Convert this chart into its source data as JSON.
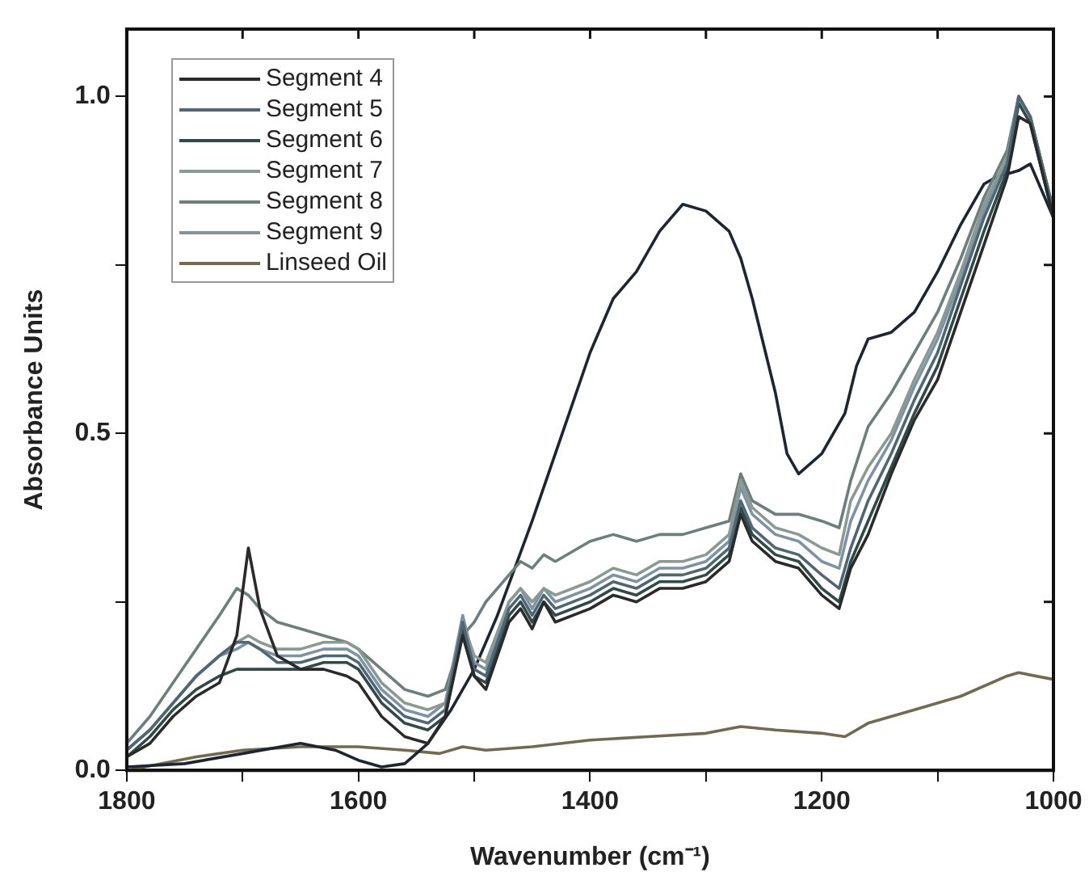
{
  "chart_data": {
    "type": "line",
    "xlabel": "Wavenumber (cm⁻¹)",
    "ylabel": "Absorbance Units",
    "xlim": [
      1800,
      1000
    ],
    "xticks": [
      1800,
      {
        "value": 1700,
        "label": null
      },
      1600,
      {
        "value": 1500,
        "label": null
      },
      1400,
      {
        "value": 1300,
        "label": null
      },
      1200,
      {
        "value": 1100,
        "label": null
      },
      1000
    ],
    "ylim": [
      0,
      1.1
    ],
    "yticks": [
      {
        "value": 0,
        "label": "0.0"
      },
      {
        "value": 0.25,
        "label": null
      },
      {
        "value": 0.5,
        "label": "0.5"
      },
      {
        "value": 0.75,
        "label": null
      },
      {
        "value": 1,
        "label": "1.0"
      }
    ],
    "grid": false,
    "legend": "top left",
    "marker": "none",
    "line_style": "solid",
    "x": [
      1800,
      1780,
      1760,
      1740,
      1720,
      1705,
      1695,
      1685,
      1670,
      1650,
      1630,
      1610,
      1600,
      1580,
      1560,
      1540,
      1525,
      1510,
      1500,
      1490,
      1470,
      1460,
      1450,
      1440,
      1430,
      1400,
      1380,
      1360,
      1340,
      1320,
      1300,
      1280,
      1270,
      1260,
      1240,
      1220,
      1200,
      1185,
      1175,
      1160,
      1140,
      1120,
      1100,
      1080,
      1060,
      1040,
      1030,
      1020,
      1000
    ],
    "series": [
      {
        "name": "Segment 4",
        "color": "#2a2a2a",
        "values": [
          0.02,
          0.04,
          0.08,
          0.11,
          0.13,
          0.2,
          0.33,
          0.24,
          0.17,
          0.15,
          0.15,
          0.14,
          0.13,
          0.08,
          0.05,
          0.04,
          0.08,
          0.2,
          0.14,
          0.12,
          0.22,
          0.24,
          0.21,
          0.25,
          0.22,
          0.24,
          0.26,
          0.25,
          0.27,
          0.27,
          0.28,
          0.31,
          0.38,
          0.34,
          0.31,
          0.3,
          0.26,
          0.24,
          0.3,
          0.35,
          0.44,
          0.52,
          0.58,
          0.68,
          0.78,
          0.88,
          0.97,
          0.96,
          0.82
        ]
      },
      {
        "name": "Segment 5",
        "color": "#4f6675",
        "values": [
          0.03,
          0.06,
          0.1,
          0.14,
          0.17,
          0.19,
          0.19,
          0.18,
          0.16,
          0.16,
          0.17,
          0.17,
          0.16,
          0.11,
          0.08,
          0.07,
          0.09,
          0.22,
          0.15,
          0.14,
          0.24,
          0.26,
          0.23,
          0.26,
          0.24,
          0.26,
          0.28,
          0.27,
          0.29,
          0.29,
          0.3,
          0.33,
          0.4,
          0.36,
          0.33,
          0.32,
          0.29,
          0.27,
          0.33,
          0.4,
          0.47,
          0.55,
          0.62,
          0.72,
          0.82,
          0.9,
          1.0,
          0.97,
          0.83
        ]
      },
      {
        "name": "Segment 6",
        "color": "#2f4a48",
        "values": [
          0.02,
          0.05,
          0.09,
          0.12,
          0.14,
          0.15,
          0.15,
          0.15,
          0.15,
          0.15,
          0.16,
          0.16,
          0.15,
          0.1,
          0.07,
          0.06,
          0.08,
          0.21,
          0.14,
          0.13,
          0.23,
          0.25,
          0.22,
          0.25,
          0.23,
          0.25,
          0.27,
          0.26,
          0.28,
          0.28,
          0.29,
          0.32,
          0.39,
          0.35,
          0.32,
          0.31,
          0.27,
          0.25,
          0.31,
          0.37,
          0.45,
          0.53,
          0.6,
          0.7,
          0.8,
          0.89,
          0.99,
          0.96,
          0.82
        ]
      },
      {
        "name": "Segment 7",
        "color": "#8a9a92",
        "values": [
          0.03,
          0.06,
          0.1,
          0.14,
          0.17,
          0.19,
          0.2,
          0.19,
          0.18,
          0.18,
          0.19,
          0.19,
          0.18,
          0.13,
          0.1,
          0.09,
          0.1,
          0.22,
          0.17,
          0.16,
          0.25,
          0.27,
          0.25,
          0.27,
          0.26,
          0.28,
          0.3,
          0.29,
          0.31,
          0.31,
          0.32,
          0.35,
          0.43,
          0.39,
          0.36,
          0.35,
          0.33,
          0.32,
          0.4,
          0.45,
          0.5,
          0.58,
          0.65,
          0.74,
          0.84,
          0.91,
          1.0,
          0.97,
          0.83
        ]
      },
      {
        "name": "Segment 8",
        "color": "#6d7f7c",
        "values": [
          0.04,
          0.08,
          0.13,
          0.18,
          0.23,
          0.27,
          0.26,
          0.24,
          0.22,
          0.21,
          0.2,
          0.19,
          0.18,
          0.15,
          0.12,
          0.11,
          0.12,
          0.2,
          0.22,
          0.25,
          0.29,
          0.31,
          0.3,
          0.32,
          0.31,
          0.34,
          0.35,
          0.34,
          0.35,
          0.35,
          0.36,
          0.37,
          0.44,
          0.4,
          0.38,
          0.38,
          0.37,
          0.36,
          0.43,
          0.51,
          0.56,
          0.62,
          0.68,
          0.76,
          0.85,
          0.92,
          1.0,
          0.97,
          0.83
        ]
      },
      {
        "name": "Segment 9",
        "color": "#7d93a5",
        "values": [
          0.03,
          0.06,
          0.1,
          0.14,
          0.17,
          0.18,
          0.19,
          0.18,
          0.17,
          0.17,
          0.18,
          0.18,
          0.17,
          0.12,
          0.09,
          0.08,
          0.1,
          0.23,
          0.16,
          0.15,
          0.25,
          0.27,
          0.24,
          0.27,
          0.25,
          0.27,
          0.29,
          0.28,
          0.3,
          0.3,
          0.31,
          0.34,
          0.42,
          0.38,
          0.35,
          0.34,
          0.31,
          0.3,
          0.37,
          0.43,
          0.49,
          0.57,
          0.64,
          0.73,
          0.83,
          0.91,
          1.0,
          0.97,
          0.83
        ]
      },
      {
        "color": "#1c2530",
        "x": [
          1800,
          1750,
          1700,
          1650,
          1620,
          1600,
          1580,
          1560,
          1540,
          1520,
          1500,
          1480,
          1450,
          1420,
          1400,
          1380,
          1360,
          1340,
          1320,
          1300,
          1280,
          1270,
          1260,
          1240,
          1230,
          1220,
          1200,
          1180,
          1170,
          1160,
          1140,
          1120,
          1100,
          1080,
          1060,
          1050,
          1030,
          1020,
          1000
        ],
        "values": [
          0.005,
          0.01,
          0.025,
          0.04,
          0.03,
          0.015,
          0.005,
          0.01,
          0.04,
          0.09,
          0.15,
          0.23,
          0.37,
          0.52,
          0.62,
          0.7,
          0.74,
          0.8,
          0.84,
          0.83,
          0.8,
          0.76,
          0.7,
          0.56,
          0.47,
          0.44,
          0.47,
          0.53,
          0.6,
          0.64,
          0.65,
          0.68,
          0.74,
          0.81,
          0.87,
          0.88,
          0.89,
          0.9,
          0.82
        ]
      },
      {
        "name": "Linseed Oil",
        "color": "#6f6a50",
        "x": [
          1800,
          1740,
          1700,
          1650,
          1600,
          1560,
          1530,
          1510,
          1490,
          1450,
          1400,
          1350,
          1300,
          1270,
          1240,
          1200,
          1180,
          1160,
          1120,
          1080,
          1040,
          1030,
          1000
        ],
        "values": [
          0.0,
          0.02,
          0.03,
          0.035,
          0.035,
          0.03,
          0.025,
          0.035,
          0.03,
          0.035,
          0.045,
          0.05,
          0.055,
          0.065,
          0.06,
          0.055,
          0.05,
          0.07,
          0.09,
          0.11,
          0.14,
          0.145,
          0.135
        ]
      }
    ]
  }
}
